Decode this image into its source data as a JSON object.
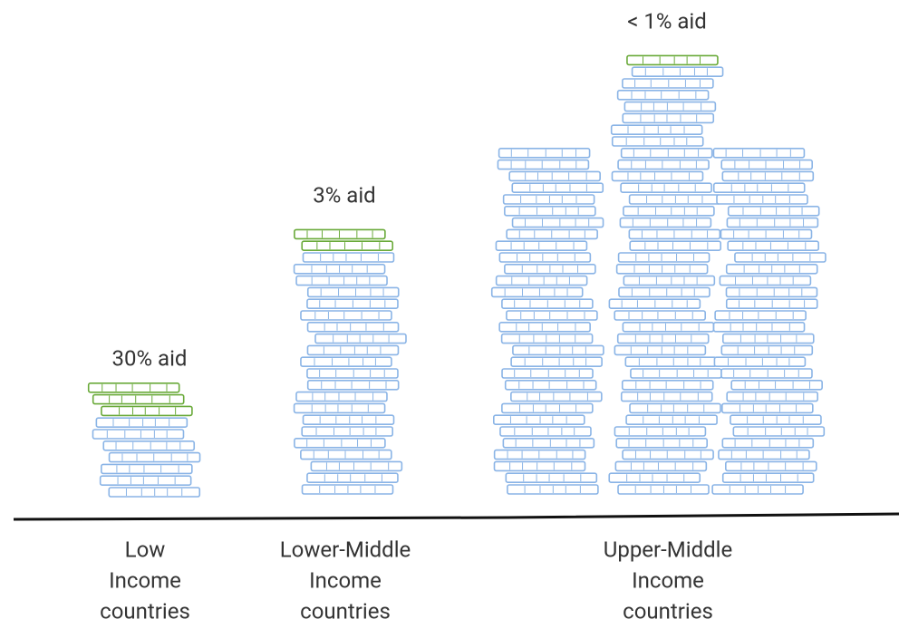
{
  "groups": [
    {
      "aid": "30% aid",
      "label": [
        "Low",
        "Income",
        "countries"
      ]
    },
    {
      "aid": "3% aid",
      "label": [
        "Lower-Middle",
        "Income",
        "countries"
      ]
    },
    {
      "aid": "< 1% aid",
      "label": [
        "Upper-Middle",
        "Income",
        "countries"
      ]
    }
  ]
}
